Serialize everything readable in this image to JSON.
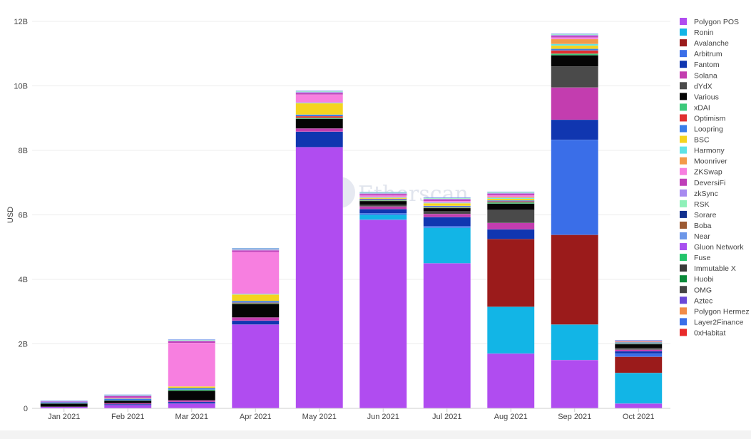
{
  "chart_data": {
    "type": "bar",
    "stacked": true,
    "ylabel": "USD",
    "xlabel": "",
    "ylim": [
      0,
      12
    ],
    "yticks": [
      {
        "value": 0,
        "label": "0"
      },
      {
        "value": 2,
        "label": "2B"
      },
      {
        "value": 4,
        "label": "4B"
      },
      {
        "value": 6,
        "label": "6B"
      },
      {
        "value": 8,
        "label": "8B"
      },
      {
        "value": 10,
        "label": "10B"
      },
      {
        "value": 12,
        "label": "12B"
      }
    ],
    "grid": true,
    "legend_position": "right",
    "watermark": "Etherscan",
    "categories": [
      "Jan 2021",
      "Feb 2021",
      "Mar 2021",
      "Apr 2021",
      "May 2021",
      "Jun 2021",
      "Jul 2021",
      "Aug 2021",
      "Sep 2021",
      "Oct 2021"
    ],
    "series": [
      {
        "name": "Polygon POS",
        "color": "#b04cf0",
        "values": [
          0.05,
          0.1,
          0.15,
          2.6,
          8.1,
          5.85,
          4.5,
          1.7,
          1.5,
          0.15
        ]
      },
      {
        "name": "Ronin",
        "color": "#12b5e6",
        "values": [
          0,
          0,
          0,
          0,
          0,
          0.15,
          1.1,
          1.45,
          1.1,
          0.95
        ]
      },
      {
        "name": "Avalanche",
        "color": "#9b1b1b",
        "values": [
          0,
          0,
          0,
          0,
          0,
          0,
          0,
          2.1,
          2.78,
          0.5
        ]
      },
      {
        "name": "Arbitrum",
        "color": "#3a6ee8",
        "values": [
          0,
          0,
          0,
          0,
          0,
          0.05,
          0.05,
          0,
          2.95,
          0.1
        ]
      },
      {
        "name": "Fantom",
        "color": "#1036b0",
        "values": [
          0,
          0.03,
          0.05,
          0.12,
          0.48,
          0.13,
          0.28,
          0.3,
          0.62,
          0.07
        ]
      },
      {
        "name": "Solana",
        "color": "#c33daf",
        "values": [
          0,
          0.03,
          0.05,
          0.1,
          0.1,
          0.08,
          0.1,
          0.2,
          1.0,
          0.05
        ]
      },
      {
        "name": "dYdX",
        "color": "#4a4a4a",
        "values": [
          0,
          0,
          0,
          0,
          0,
          0.05,
          0.08,
          0.4,
          0.65,
          0.05
        ]
      },
      {
        "name": "Various",
        "color": "#050505",
        "values": [
          0.1,
          0.08,
          0.3,
          0.42,
          0.3,
          0.12,
          0.1,
          0.2,
          0.35,
          0.12
        ]
      },
      {
        "name": "xDAI",
        "color": "#3cc97a",
        "values": [
          0.01,
          0.01,
          0.03,
          0.02,
          0.03,
          0.02,
          0.02,
          0.04,
          0.05,
          0.02
        ]
      },
      {
        "name": "Optimism",
        "color": "#e03030",
        "values": [
          0,
          0,
          0,
          0.02,
          0.05,
          0.02,
          0.02,
          0.03,
          0.1,
          0.01
        ]
      },
      {
        "name": "Loopring",
        "color": "#3a7de8",
        "values": [
          0.03,
          0.05,
          0.05,
          0.05,
          0.05,
          0.03,
          0.03,
          0.03,
          0.05,
          0.03
        ]
      },
      {
        "name": "BSC",
        "color": "#f5d41f",
        "values": [
          0,
          0.01,
          0.05,
          0.2,
          0.35,
          0.03,
          0.08,
          0.05,
          0.1,
          0.01
        ]
      },
      {
        "name": "Harmony",
        "color": "#5ee3e6",
        "values": [
          0,
          0,
          0,
          0.02,
          0.02,
          0.02,
          0.02,
          0.03,
          0.05,
          0
        ]
      },
      {
        "name": "Moonriver",
        "color": "#f39a4a",
        "values": [
          0,
          0,
          0,
          0,
          0,
          0,
          0,
          0.03,
          0.15,
          0.01
        ]
      },
      {
        "name": "ZKSwap",
        "color": "#f77fe0",
        "values": [
          0,
          0.02,
          1.35,
          1.3,
          0.25,
          0.05,
          0.05,
          0.05,
          0.05,
          0
        ]
      },
      {
        "name": "DeversiFi",
        "color": "#bf3fb8",
        "values": [
          0.02,
          0.05,
          0.05,
          0.05,
          0.05,
          0.05,
          0.05,
          0.05,
          0.05,
          0.02
        ]
      },
      {
        "name": "zkSync",
        "color": "#a78af0",
        "values": [
          0.01,
          0.02,
          0.02,
          0.03,
          0.03,
          0.02,
          0.02,
          0.02,
          0.03,
          0.01
        ]
      },
      {
        "name": "RSK",
        "color": "#8ef0b8",
        "values": [
          0,
          0.01,
          0.02,
          0.02,
          0.02,
          0.02,
          0.02,
          0.02,
          0.02,
          0
        ]
      },
      {
        "name": "Sorare",
        "color": "#12308e",
        "values": [
          0,
          0,
          0,
          0,
          0,
          0,
          0,
          0,
          0,
          0
        ]
      },
      {
        "name": "Boba",
        "color": "#9c5a32",
        "values": [
          0,
          0,
          0,
          0,
          0,
          0,
          0,
          0,
          0,
          0
        ]
      },
      {
        "name": "Near",
        "color": "#6c96e8",
        "values": [
          0.01,
          0.01,
          0.01,
          0.02,
          0.02,
          0.02,
          0.02,
          0.02,
          0.02,
          0.01
        ]
      },
      {
        "name": "Gluon Network",
        "color": "#a84ff0",
        "values": [
          0,
          0,
          0,
          0,
          0,
          0,
          0,
          0,
          0,
          0
        ]
      },
      {
        "name": "Fuse",
        "color": "#22c46a",
        "values": [
          0,
          0,
          0,
          0,
          0,
          0,
          0,
          0,
          0,
          0
        ]
      },
      {
        "name": "Immutable X",
        "color": "#3a3a3a",
        "values": [
          0,
          0,
          0,
          0,
          0,
          0,
          0,
          0,
          0,
          0
        ]
      },
      {
        "name": "Huobi",
        "color": "#0b8a3a",
        "values": [
          0,
          0,
          0,
          0,
          0,
          0,
          0,
          0,
          0,
          0
        ]
      },
      {
        "name": "OMG",
        "color": "#444444",
        "values": [
          0,
          0,
          0,
          0,
          0,
          0,
          0,
          0,
          0,
          0
        ]
      },
      {
        "name": "Aztec",
        "color": "#6a48d8",
        "values": [
          0,
          0,
          0,
          0,
          0,
          0,
          0,
          0,
          0,
          0
        ]
      },
      {
        "name": "Polygon Hermez",
        "color": "#f28c48",
        "values": [
          0,
          0,
          0,
          0,
          0,
          0,
          0,
          0,
          0,
          0
        ]
      },
      {
        "name": "Layer2Finance",
        "color": "#3a6ee8",
        "values": [
          0,
          0,
          0,
          0,
          0,
          0,
          0,
          0,
          0,
          0
        ]
      },
      {
        "name": "0xHabitat",
        "color": "#e82a2a",
        "values": [
          0,
          0,
          0,
          0,
          0,
          0,
          0,
          0,
          0,
          0
        ]
      }
    ]
  }
}
